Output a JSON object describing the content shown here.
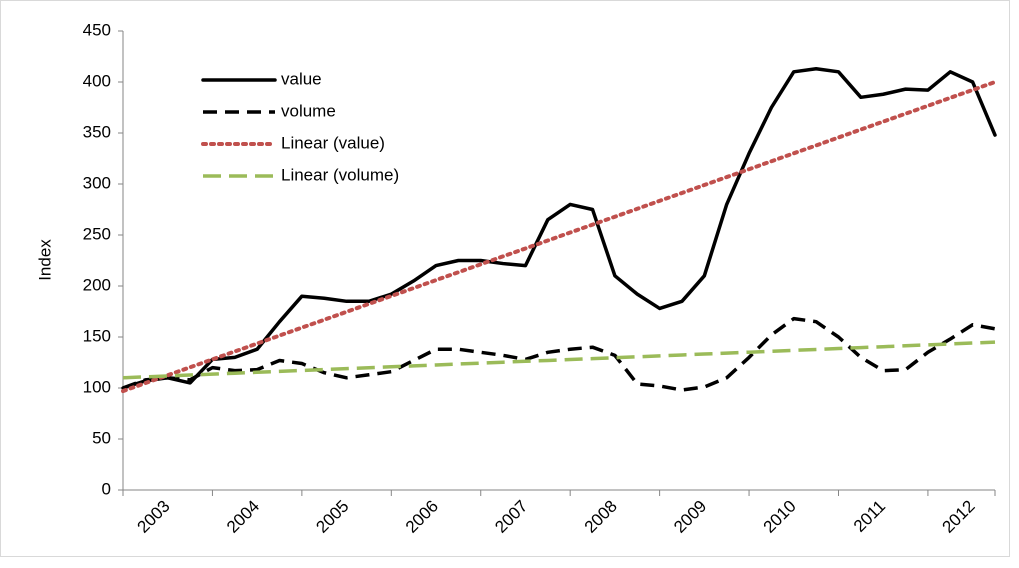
{
  "chart_data": {
    "type": "line",
    "y_label": "Index",
    "categories": [
      "2003",
      null,
      null,
      null,
      "2004",
      null,
      null,
      null,
      "2005",
      null,
      null,
      null,
      "2006",
      null,
      null,
      null,
      "2007",
      null,
      null,
      null,
      "2008",
      null,
      null,
      null,
      "2009",
      null,
      null,
      null,
      "2010",
      null,
      null,
      null,
      "2011",
      null,
      null,
      null,
      "2012",
      null,
      null,
      null
    ],
    "ylim": [
      0,
      450
    ],
    "yticks": [
      0,
      50,
      100,
      150,
      200,
      250,
      300,
      350,
      400,
      450
    ],
    "series": [
      {
        "name": "value",
        "color": "#000000",
        "dash": "solid",
        "values": [
          100,
          107,
          110,
          105,
          128,
          130,
          138,
          165,
          190,
          188,
          185,
          185,
          192,
          205,
          220,
          225,
          225,
          222,
          220,
          265,
          280,
          275,
          210,
          192,
          178,
          185,
          210,
          280,
          330,
          375,
          410,
          413,
          410,
          385,
          388,
          393,
          392,
          410,
          400,
          348
        ]
      },
      {
        "name": "volume",
        "color": "#000000",
        "dash": "dashed",
        "values": [
          100,
          108,
          110,
          108,
          120,
          117,
          118,
          127,
          124,
          115,
          110,
          113,
          116,
          127,
          138,
          138,
          135,
          132,
          128,
          135,
          138,
          140,
          132,
          104,
          102,
          98,
          101,
          110,
          130,
          152,
          168,
          165,
          150,
          130,
          117,
          118,
          135,
          148,
          162,
          158
        ]
      },
      {
        "name": "Linear (value)",
        "color": "#c0504d",
        "dash": "dotted",
        "values": [
          97,
          104.8,
          112.5,
          120.3,
          128.1,
          135.8,
          143.6,
          151.4,
          159.2,
          166.9,
          174.7,
          182.5,
          190.2,
          198,
          205.8,
          213.5,
          221.3,
          229.1,
          236.8,
          244.6,
          252.4,
          260.2,
          267.9,
          275.7,
          283.5,
          291.2,
          299,
          306.8,
          314.5,
          322.3,
          330.1,
          337.8,
          345.6,
          353.4,
          361.2,
          368.9,
          376.7,
          384.5,
          392.2,
          400
        ]
      },
      {
        "name": "Linear (volume)",
        "color": "#9bbb59",
        "dash": "longdash",
        "values": [
          110,
          110.9,
          111.8,
          112.7,
          113.6,
          114.5,
          115.4,
          116.3,
          117.2,
          118.1,
          119,
          119.9,
          120.8,
          121.7,
          122.6,
          123.5,
          124.4,
          125.3,
          126.2,
          127,
          127.9,
          128.8,
          129.7,
          130.6,
          131.5,
          132.4,
          133.3,
          134.2,
          135.1,
          136,
          136.9,
          137.8,
          138.7,
          139.6,
          140.5,
          141.4,
          142.3,
          143.2,
          144.1,
          145
        ]
      }
    ],
    "legend": "upper-left"
  }
}
